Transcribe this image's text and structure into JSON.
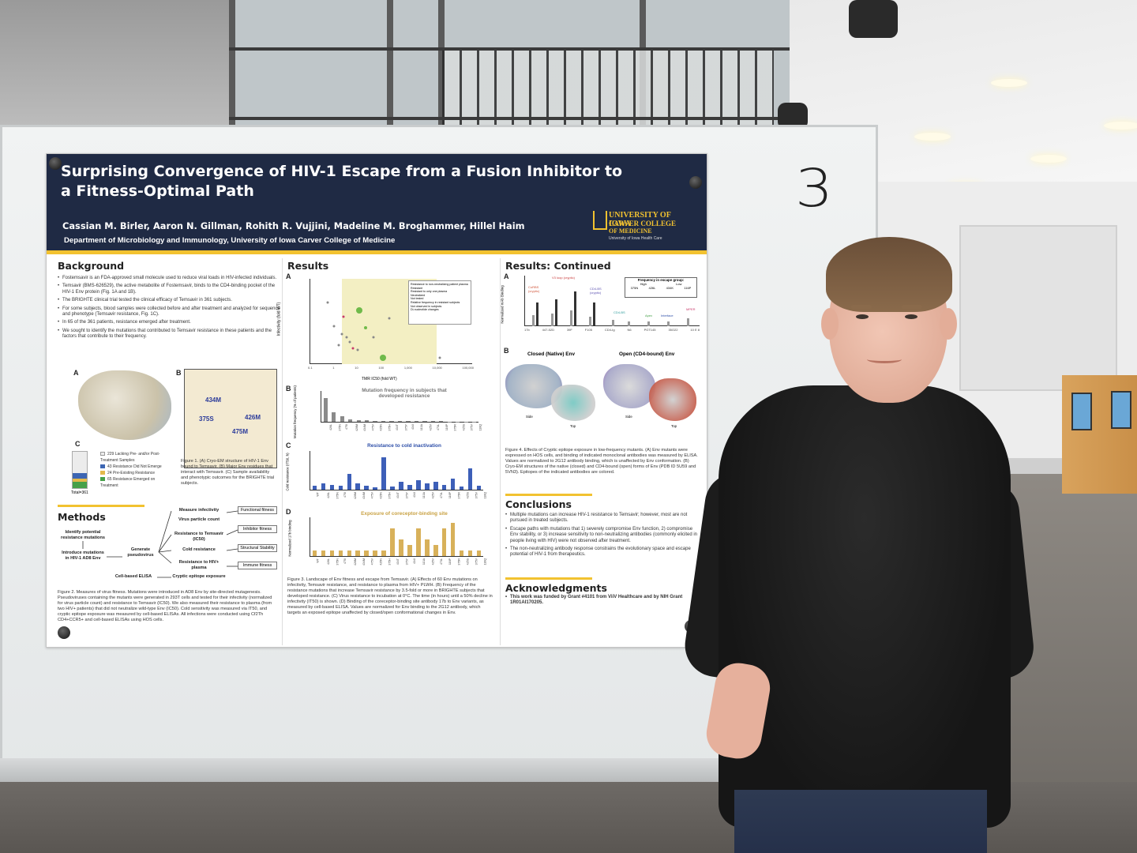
{
  "board": {
    "number": "3"
  },
  "poster": {
    "title": "Surprising Convergence of HIV-1 Escape from a Fusion Inhibitor to a Fitness-Optimal Path",
    "authors": "Cassian M. Birler, Aaron N. Gillman, Rohith R. Vujjini, Madeline M. Broghammer, Hillel Haim",
    "department": "Department of Microbiology and Immunology, University of Iowa Carver College of Medicine",
    "logo": {
      "line1": "UNIVERSITY OF IOWA",
      "line2": "CARVER COLLEGE",
      "line3": "OF MEDICINE",
      "line4": "University of Iowa Health Care"
    },
    "background": {
      "heading": "Background",
      "bullets": [
        "Fostemsavir is an FDA-approved small molecule used to reduce viral loads in HIV-infected individuals.",
        "Temsavir (BMS-626529), the active metabolite of Fostemsavir, binds to the CD4-binding pocket of the HIV-1 Env protein (Fig. 1A and 1B).",
        "The BRIGHTE clinical trial tested the clinical efficacy of Temsavir in 361 subjects.",
        "For some subjects, blood samples were collected before and after treatment and analyzed for sequence and phenotype (Temsavir resistance, Fig. 1C).",
        "In 65 of the 361 patients, resistance emerged after treatment.",
        "We sought to identify the mutations that contributed to Temsavir resistance in these patients and the factors that contribute to their frequency."
      ]
    },
    "figure1": {
      "label_a": "A",
      "label_b": "B",
      "label_c": "C",
      "residues": [
        "434M",
        "426M",
        "375S",
        "475M"
      ],
      "legend": [
        "229 Lacking Pre- and/or Post-Treatment Samples",
        "43 Resistance Did Not Emerge",
        "24 Pre-Existing Resistance",
        "65 Resistance Emerged on Treatment"
      ],
      "total": "Total=361",
      "caption": "Figure 1. (A) Cryo-EM structure of HIV-1 Env bound to Temsavir. (B) Major Env residues that interact with Temsavir. (C) Sample availability and phenotypic outcomes for the BRIGHTE trial subjects."
    },
    "methods": {
      "heading": "Methods",
      "steps": {
        "identify": "Identify potential resistance mutations",
        "introduce": "Introduce mutations in HIV-1 AD8 Env",
        "generate": "Generate pseudovirus",
        "elisa": "Cell-based ELISA"
      },
      "assays": [
        "Measure infectivity",
        "Virus particle count",
        "Resistance to Temsavir (IC50)",
        "Cold resistance",
        "Resistance to HIV+ plasma",
        "Cryptic epitope exposure"
      ],
      "outcomes": [
        "Functional fitness",
        "Inhibitor fitness",
        "Structural Stability",
        "Immune fitness"
      ],
      "caption": "Figure 2. Measures of virus fitness. Mutations were introduced in AD8 Env by site-directed mutagenesis. Pseudoviruses containing the mutants were generated in 293T cells and tested for their infectivity (normalized for virus particle count) and resistance to Temsavir (IC50). We also measured their resistance to plasma (from two HIV+ patients) that did not neutralize wild-type Env (IC50). Cold sensitivity was measured via IT50, and cryptic epitope exposure was measured by cell-based ELISAs. All infections were conducted using Cf2Th CD4+CCR5+ and cell-based ELISAs using HOS cells."
    },
    "results": {
      "heading": "Results",
      "panel_a": {
        "label": "A",
        "ylabel": "Infectivity (fold WT)",
        "xlabel": "TMR IC50 (fold WT)",
        "xticks": [
          "0.1",
          "1",
          "10",
          "100",
          "1,000",
          "10,000",
          "100,000"
        ],
        "legend_title": "Resistance to non-neutralizing patient plasma",
        "legend": [
          "Resistant",
          "Resistant to only one plasma",
          "Neutralized",
          "Not tested",
          "Relative frequency in resistant subjects",
          "Not observed in subjects",
          "Di-nucleotide changes"
        ]
      },
      "panel_b": {
        "label": "B",
        "title": "Mutation frequency in subjects that developed resistance",
        "ylabel": "Mutation frequency (% of patients)"
      },
      "panel_c": {
        "label": "C",
        "title": "Resistance to cold inactivation",
        "ylabel": "Cold resistance (IT50, h)"
      },
      "panel_d": {
        "label": "D",
        "title": "Exposure of coreceptor-binding site",
        "ylabel": "Normalized 17b binding"
      },
      "mutations": [
        "WT",
        "426L",
        "375N",
        "475I",
        "426M",
        "434M",
        "475V",
        "425N",
        "375H",
        "434T",
        "375Y",
        "434I",
        "113A",
        "425V",
        "473L",
        "116P",
        "375R",
        "425S",
        "375V",
        "116Q"
      ],
      "caption": "Figure 3. Landscape of Env fitness and escape from Temsavir. (A) Effects of 60 Env mutations on infectivity, Temsavir resistance, and resistance to plasma from HIV+ PLWH. (B) Frequency of the resistance mutations that increase Temsavir resistance by 3.5-fold or more in BRIGHTE subjects that developed resistance. (C) Virus resistance to incubation at 0°C. The time (in hours) until a 50% decline in infectivity (IT50) is shown. (D) Binding of the coreceptor-binding site antibody 17b to Env variants, as measured by cell-based ELISA. Values are normalized for Env binding to the 2G12 antibody, which targets an exposed epitope unaffected by closed/open conformational changes in Env."
    },
    "results_continued": {
      "heading": "Results: Continued",
      "panel_a": {
        "label": "A",
        "ylabel": "Normalized mAb Binding",
        "groups": [
          "17b",
          "447-52D",
          "39F",
          "F105",
          "CD4-Ig",
          "N6",
          "PGT145",
          "35O22",
          "10 E 8"
        ],
        "legend_title": "Frequency in escape group:",
        "legend": [
          "High",
          "Low",
          "375N",
          "426L",
          "434K",
          "116P"
        ],
        "annotations": [
          "CoRBS (cryptic)",
          "V3 loop (cryptic)",
          "CD4-BS (cryptic)",
          "CD4-BS",
          "Apex",
          "Interface",
          "MPER"
        ]
      },
      "panel_b": {
        "label": "B",
        "closed": "Closed (Native) Env",
        "open": "Open (CD4-bound) Env",
        "views": [
          "Side",
          "Top",
          "Side",
          "Top"
        ]
      },
      "caption": "Figure 4. Effects of Cryptic epitope exposure in low-frequency mutants. (A) Env mutants were expressed on HOS cells, and binding of indicated monoclonal antibodies was measured by ELISA. Values are normalized to 2G12 antibody binding, which is unaffected by Env conformation. (B) Cryo-EM structures of the native (closed) and CD4-bound (open) forms of Env (PDB ID 5U59 and 5VN3). Epitopes of the indicated antibodies are colored."
    },
    "conclusions": {
      "heading": "Conclusions",
      "bullets": [
        "Multiple mutations can increase HIV-1 resistance to Temsavir; however, most are not pursued in treated subjects.",
        "Escape paths with mutations that 1) severely compromise Env function, 2) compromise Env stability, or 3) increase sensitivity to non-neutralizing antibodies (commonly elicited in people living with HIV) were not observed after treatment.",
        "The non-neutralizing antibody response constrains the evolutionary space and escape potential of HIV-1 from therapeutics."
      ]
    },
    "acknowledgments": {
      "heading": "Acknowledgments",
      "text": "This work was funded by Grant #4101 from ViiV Healthcare and by NIH Grant 1R01AI170205."
    }
  },
  "chart_data": [
    {
      "type": "bar",
      "title": "Mutation frequency in subjects that developed resistance",
      "ylabel": "Mutation frequency (% of patients)",
      "categories": [
        "426L",
        "375N",
        "475I",
        "426M",
        "434M",
        "475V",
        "425N",
        "375H",
        "434T",
        "375Y",
        "434I",
        "113A",
        "425V",
        "473L",
        "116P",
        "375R",
        "425S",
        "375V",
        "116Q"
      ],
      "values": [
        62,
        25,
        15,
        6,
        4,
        4,
        3,
        3,
        3,
        2,
        2,
        2,
        2,
        2,
        2,
        1,
        1,
        1,
        1
      ],
      "ylim": [
        0,
        80
      ]
    },
    {
      "type": "bar",
      "title": "Resistance to cold inactivation",
      "ylabel": "Cold resistance (IT50, h)",
      "categories": [
        "WT",
        "426L",
        "375N",
        "475I",
        "426M",
        "434M",
        "475V",
        "425N",
        "375H",
        "434T",
        "375Y",
        "434I",
        "113A",
        "425V",
        "473L",
        "116P",
        "375R",
        "425S",
        "375V",
        "116Q"
      ],
      "values": [
        5,
        8,
        6,
        5,
        20,
        8,
        5,
        3,
        42,
        4,
        10,
        6,
        12,
        8,
        10,
        6,
        14,
        4,
        28,
        5
      ],
      "ylim": [
        0,
        50
      ]
    },
    {
      "type": "bar",
      "title": "Exposure of coreceptor-binding site",
      "ylabel": "Normalized 17b binding",
      "categories": [
        "WT",
        "426L",
        "375N",
        "475I",
        "426M",
        "434M",
        "475V",
        "425N",
        "375H",
        "434T",
        "375Y",
        "434I",
        "113A",
        "425V",
        "473L",
        "116P",
        "375R",
        "425S",
        "375V",
        "116Q"
      ],
      "values": [
        1,
        1,
        1,
        1,
        1,
        1,
        1,
        1,
        1,
        5,
        3,
        2,
        5,
        3,
        2,
        5,
        6,
        1,
        1,
        1
      ],
      "ylim": [
        0,
        7
      ]
    }
  ]
}
